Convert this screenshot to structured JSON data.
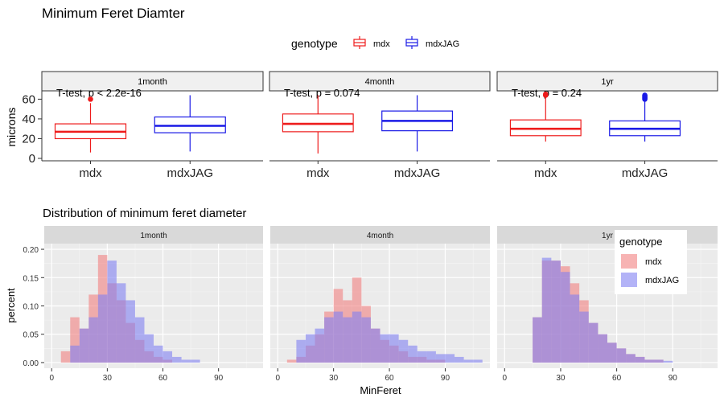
{
  "figure": {
    "title": "Minimum Feret Diamter",
    "legend": {
      "title": "genotype",
      "items": [
        {
          "label": "mdx",
          "color": "#ee1c1c"
        },
        {
          "label": "mdxJAG",
          "color": "#1a1ae6"
        }
      ]
    }
  },
  "chart_data": [
    {
      "type": "box",
      "title": "Minimum Feret Diamter",
      "ylabel": "microns",
      "ylim": [
        0,
        66
      ],
      "yticks": [
        0,
        20,
        40,
        60
      ],
      "categories": [
        "mdx",
        "mdxJAG"
      ],
      "colors": {
        "mdx": "#ee1c1c",
        "mdxJAG": "#1a1ae6"
      },
      "panels": [
        {
          "label": "1month",
          "annotation": "T-test, p < 2.2e-16",
          "boxes": [
            {
              "group": "mdx",
              "min": 6,
              "q1": 20,
              "median": 27,
              "q3": 35,
              "max": 56,
              "outliers": [
                60
              ]
            },
            {
              "group": "mdxJAG",
              "min": 7,
              "q1": 26,
              "median": 33,
              "q3": 42,
              "max": 64,
              "outliers": []
            }
          ]
        },
        {
          "label": "4month",
          "annotation": "T-test, p = 0.074",
          "boxes": [
            {
              "group": "mdx",
              "min": 5,
              "q1": 27,
              "median": 35,
              "q3": 45,
              "max": 64,
              "outliers": []
            },
            {
              "group": "mdxJAG",
              "min": 7,
              "q1": 28,
              "median": 38,
              "q3": 48,
              "max": 64,
              "outliers": []
            }
          ]
        },
        {
          "label": "1yr",
          "annotation": "T-test, p = 0.24",
          "boxes": [
            {
              "group": "mdx",
              "min": 17,
              "q1": 23,
              "median": 30,
              "q3": 39,
              "max": 63,
              "outliers": [
                64,
                65
              ]
            },
            {
              "group": "mdxJAG",
              "min": 17,
              "q1": 23,
              "median": 30,
              "q3": 38,
              "max": 58,
              "outliers": [
                60,
                61,
                62,
                63,
                64
              ]
            }
          ]
        }
      ]
    },
    {
      "type": "histogram",
      "title": "Distribution of minimum feret diameter",
      "xlabel": "MinFeret",
      "ylabel": "percent",
      "xlim": [
        -4,
        114
      ],
      "ylim": [
        -0.01,
        0.21
      ],
      "xticks": [
        0,
        30,
        60,
        90
      ],
      "yticks": [
        0.0,
        0.05,
        0.1,
        0.15,
        0.2
      ],
      "ytick_labels": [
        "0.00",
        "0.05",
        "0.10",
        "0.15",
        "0.20"
      ],
      "bin_width": 5,
      "legend": {
        "title": "genotype",
        "placement": "top-right",
        "items": [
          "mdx",
          "mdxJAG"
        ]
      },
      "colors": {
        "mdx": "#f28080",
        "mdxJAG": "#8080f2"
      },
      "panels": [
        {
          "label": "1month",
          "series": [
            {
              "name": "mdx",
              "bins": [
                [
                  5,
                  0.02
                ],
                [
                  10,
                  0.08
                ],
                [
                  15,
                  0.06
                ],
                [
                  20,
                  0.12
                ],
                [
                  25,
                  0.19
                ],
                [
                  30,
                  0.14
                ],
                [
                  35,
                  0.11
                ],
                [
                  40,
                  0.07
                ],
                [
                  45,
                  0.04
                ],
                [
                  50,
                  0.02
                ],
                [
                  55,
                  0.01
                ],
                [
                  60,
                  0.005
                ]
              ]
            },
            {
              "name": "mdxJAG",
              "bins": [
                [
                  10,
                  0.03
                ],
                [
                  15,
                  0.06
                ],
                [
                  20,
                  0.08
                ],
                [
                  25,
                  0.12
                ],
                [
                  30,
                  0.18
                ],
                [
                  35,
                  0.14
                ],
                [
                  40,
                  0.11
                ],
                [
                  45,
                  0.08
                ],
                [
                  50,
                  0.05
                ],
                [
                  55,
                  0.03
                ],
                [
                  60,
                  0.02
                ],
                [
                  65,
                  0.01
                ],
                [
                  70,
                  0.005
                ],
                [
                  75,
                  0.005
                ]
              ]
            }
          ]
        },
        {
          "label": "4month",
          "series": [
            {
              "name": "mdx",
              "bins": [
                [
                  5,
                  0.005
                ],
                [
                  10,
                  0.01
                ],
                [
                  15,
                  0.03
                ],
                [
                  20,
                  0.05
                ],
                [
                  25,
                  0.09
                ],
                [
                  30,
                  0.13
                ],
                [
                  35,
                  0.11
                ],
                [
                  40,
                  0.15
                ],
                [
                  45,
                  0.1
                ],
                [
                  50,
                  0.06
                ],
                [
                  55,
                  0.04
                ],
                [
                  60,
                  0.03
                ],
                [
                  65,
                  0.02
                ],
                [
                  70,
                  0.01
                ],
                [
                  75,
                  0.01
                ],
                [
                  80,
                  0.005
                ],
                [
                  85,
                  0.005
                ]
              ]
            },
            {
              "name": "mdxJAG",
              "bins": [
                [
                  10,
                  0.04
                ],
                [
                  15,
                  0.05
                ],
                [
                  20,
                  0.06
                ],
                [
                  25,
                  0.08
                ],
                [
                  30,
                  0.09
                ],
                [
                  35,
                  0.08
                ],
                [
                  40,
                  0.09
                ],
                [
                  45,
                  0.08
                ],
                [
                  50,
                  0.06
                ],
                [
                  55,
                  0.05
                ],
                [
                  60,
                  0.05
                ],
                [
                  65,
                  0.04
                ],
                [
                  70,
                  0.03
                ],
                [
                  75,
                  0.02
                ],
                [
                  80,
                  0.02
                ],
                [
                  85,
                  0.015
                ],
                [
                  90,
                  0.015
                ],
                [
                  95,
                  0.01
                ],
                [
                  100,
                  0.005
                ],
                [
                  105,
                  0.005
                ]
              ]
            }
          ]
        },
        {
          "label": "1yr",
          "series": [
            {
              "name": "mdx",
              "bins": [
                [
                  15,
                  0.08
                ],
                [
                  20,
                  0.18
                ],
                [
                  25,
                  0.18
                ],
                [
                  30,
                  0.17
                ],
                [
                  35,
                  0.14
                ],
                [
                  40,
                  0.11
                ],
                [
                  45,
                  0.07
                ],
                [
                  50,
                  0.05
                ],
                [
                  55,
                  0.035
                ],
                [
                  60,
                  0.025
                ],
                [
                  65,
                  0.015
                ],
                [
                  70,
                  0.01
                ],
                [
                  75,
                  0.005
                ],
                [
                  80,
                  0.005
                ]
              ]
            },
            {
              "name": "mdxJAG",
              "bins": [
                [
                  15,
                  0.08
                ],
                [
                  20,
                  0.185
                ],
                [
                  25,
                  0.18
                ],
                [
                  30,
                  0.16
                ],
                [
                  35,
                  0.12
                ],
                [
                  40,
                  0.09
                ],
                [
                  45,
                  0.07
                ],
                [
                  50,
                  0.05
                ],
                [
                  55,
                  0.035
                ],
                [
                  60,
                  0.025
                ],
                [
                  65,
                  0.015
                ],
                [
                  70,
                  0.01
                ],
                [
                  75,
                  0.005
                ],
                [
                  80,
                  0.005
                ],
                [
                  85,
                  0.003
                ]
              ]
            }
          ]
        }
      ]
    }
  ]
}
